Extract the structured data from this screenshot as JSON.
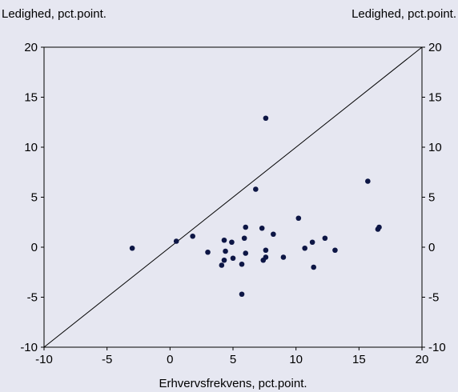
{
  "chart_data": {
    "type": "scatter",
    "ylabel_left": "Ledighed, pct.point.",
    "ylabel_right": "Ledighed, pct.point.",
    "xlabel": "Erhvervsfrekvens, pct.point.",
    "xlim": [
      -10,
      20
    ],
    "ylim": [
      -10,
      20
    ],
    "x_ticks": [
      -10,
      -5,
      0,
      5,
      10,
      15,
      20
    ],
    "y_ticks": [
      -10,
      -5,
      0,
      5,
      10,
      15,
      20
    ],
    "grid": false,
    "reference_line": {
      "from": [
        -10,
        -10
      ],
      "to": [
        20,
        20
      ]
    },
    "marker_color": "#0D1645",
    "background_color": "#E6E7F1",
    "points": [
      {
        "x": -3.0,
        "y": -0.1
      },
      {
        "x": 0.5,
        "y": 0.6
      },
      {
        "x": 1.8,
        "y": 1.1
      },
      {
        "x": 3.0,
        "y": -0.5
      },
      {
        "x": 4.1,
        "y": -1.8
      },
      {
        "x": 4.3,
        "y": 0.7
      },
      {
        "x": 4.4,
        "y": -0.4
      },
      {
        "x": 4.3,
        "y": -1.3
      },
      {
        "x": 4.9,
        "y": 0.5
      },
      {
        "x": 5.0,
        "y": -1.1
      },
      {
        "x": 5.7,
        "y": -1.7
      },
      {
        "x": 5.7,
        "y": -4.7
      },
      {
        "x": 5.9,
        "y": 0.9
      },
      {
        "x": 6.0,
        "y": 2.0
      },
      {
        "x": 6.0,
        "y": -0.6
      },
      {
        "x": 6.8,
        "y": 5.8
      },
      {
        "x": 7.3,
        "y": 1.9
      },
      {
        "x": 7.4,
        "y": -1.3
      },
      {
        "x": 7.6,
        "y": -1.0
      },
      {
        "x": 7.6,
        "y": -0.3
      },
      {
        "x": 7.6,
        "y": 12.9
      },
      {
        "x": 8.2,
        "y": 1.3
      },
      {
        "x": 9.0,
        "y": -1.0
      },
      {
        "x": 10.2,
        "y": 2.9
      },
      {
        "x": 10.7,
        "y": -0.1
      },
      {
        "x": 11.3,
        "y": 0.5
      },
      {
        "x": 11.4,
        "y": -2.0
      },
      {
        "x": 12.3,
        "y": 0.9
      },
      {
        "x": 13.1,
        "y": -0.3
      },
      {
        "x": 15.7,
        "y": 6.6
      },
      {
        "x": 16.5,
        "y": 1.8
      },
      {
        "x": 16.6,
        "y": 2.0
      }
    ]
  }
}
